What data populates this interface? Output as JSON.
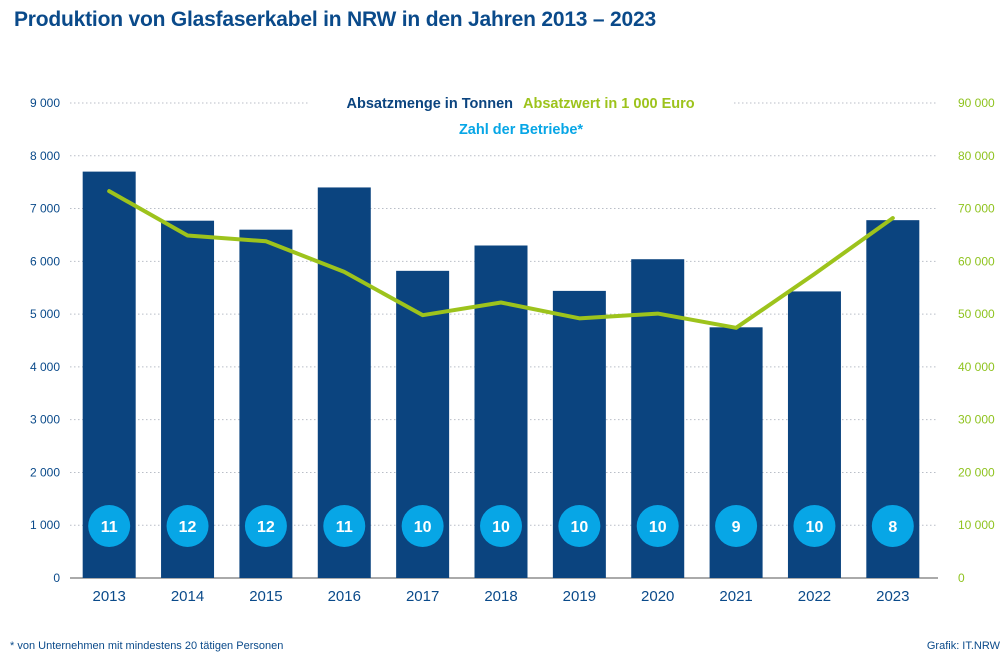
{
  "title": "Produktion von Glasfaserkabel in NRW in den Jahren 2013 – 2023",
  "footnote": "* von Unternehmen mit mindestens 20 tätigen Personen",
  "source": "Grafik: IT.NRW",
  "colors": {
    "bars": "#0b447f",
    "line": "#9dc31c",
    "circles": "#07a6e6",
    "left_axis_text": "#0a4a8a",
    "right_axis_text": "#8fc31f",
    "grid": "#b9bec7"
  },
  "chart_data": {
    "type": "bar",
    "title": "Produktion von Glasfaserkabel in NRW in den Jahren 2013 – 2023",
    "categories": [
      "2013",
      "2014",
      "2015",
      "2016",
      "2017",
      "2018",
      "2019",
      "2020",
      "2021",
      "2022",
      "2023"
    ],
    "series": [
      {
        "name": "Absatzmenge in Tonnen",
        "type": "bar",
        "axis": "left",
        "values": [
          7700,
          6770,
          6600,
          7400,
          5820,
          6300,
          5440,
          6040,
          4750,
          5430,
          6780
        ]
      },
      {
        "name": "Absatzwert in 1 000 Euro",
        "type": "line",
        "axis": "right",
        "values": [
          73300,
          64900,
          63800,
          58000,
          49800,
          52200,
          49200,
          50100,
          47400,
          57600,
          68200
        ]
      },
      {
        "name": "Zahl der Betriebe*",
        "type": "label-circles",
        "values": [
          11,
          12,
          12,
          11,
          10,
          10,
          10,
          10,
          9,
          10,
          8
        ]
      }
    ],
    "y_left": {
      "ylim": [
        0,
        9000
      ],
      "ticks": [
        0,
        1000,
        2000,
        3000,
        4000,
        5000,
        6000,
        7000,
        8000,
        9000
      ],
      "tick_labels": [
        "0",
        "1 000",
        "2 000",
        "3 000",
        "4 000",
        "5 000",
        "6 000",
        "7 000",
        "8 000",
        "9 000"
      ]
    },
    "y_right": {
      "ylim": [
        0,
        90000
      ],
      "ticks": [
        0,
        10000,
        20000,
        30000,
        40000,
        50000,
        60000,
        70000,
        80000,
        90000
      ],
      "tick_labels": [
        "0",
        "10 000",
        "20 000",
        "30 000",
        "40 000",
        "50 000",
        "60 000",
        "70 000",
        "80 000",
        "90 000"
      ]
    },
    "grid": true,
    "legend": "top-center"
  }
}
